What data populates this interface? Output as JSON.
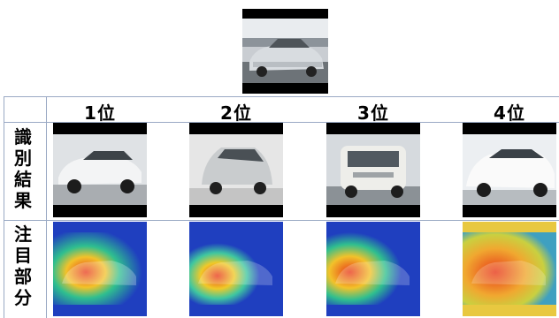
{
  "ranks": [
    "1位",
    "2位",
    "3位",
    "4位"
  ],
  "row_labels": {
    "result": "識\n別\n結\n果",
    "attention": "注\n目\n部\n分"
  },
  "colors": {
    "grid": "#9aa9c4",
    "letterbox": "#000000",
    "heat_low": "#1f3fbf",
    "heat_mid": "#2fbf8f",
    "heat_high": "#e83a1a"
  },
  "images": {
    "query": "silver-sedan-photo",
    "results": [
      "white-bmw-wagon-photo",
      "silver-hatchback-photo",
      "white-nissan-cube-photo",
      "white-honda-odyssey-photo"
    ],
    "attention": [
      "attention-heatmap-1",
      "attention-heatmap-2",
      "attention-heatmap-3",
      "attention-heatmap-4"
    ]
  }
}
